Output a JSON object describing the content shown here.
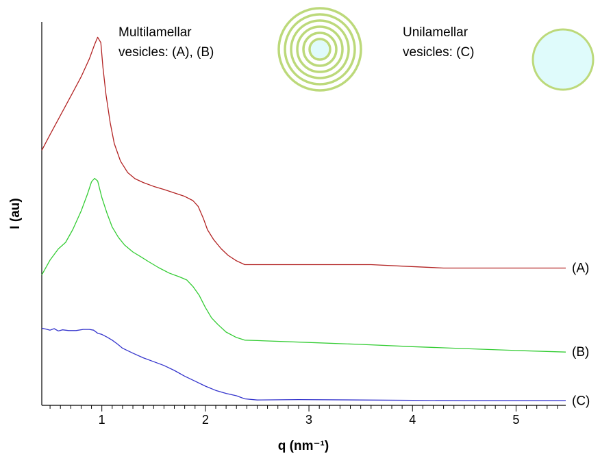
{
  "chart_data": {
    "type": "line",
    "xlabel": "q (nm⁻¹)",
    "ylabel": "I (au)",
    "xlim": [
      0.42,
      5.48
    ],
    "ylim": [
      0,
      1
    ],
    "x_ticks": [
      "1",
      "2",
      "3",
      "4",
      "5"
    ],
    "x_tick_values": [
      1,
      2,
      3,
      4,
      5
    ],
    "grid": false,
    "annotations": {
      "multilamellar": [
        "Multilamellar",
        "vesicles: (A), (B)"
      ],
      "unilamellar": [
        "Unilamellar",
        "vesicles: (C)"
      ]
    },
    "colors": {
      "A": "#b22222",
      "B": "#33cc33",
      "C": "#3333cc",
      "vesicle_ring": "#bcd97a",
      "vesicle_fill": "#dffbfb"
    },
    "series": [
      {
        "name": "(A)",
        "color": "#b22222",
        "points": [
          [
            0.42,
            0.665
          ],
          [
            0.5,
            0.706
          ],
          [
            0.6,
            0.756
          ],
          [
            0.7,
            0.806
          ],
          [
            0.8,
            0.857
          ],
          [
            0.88,
            0.904
          ],
          [
            0.93,
            0.941
          ],
          [
            0.96,
            0.96
          ],
          [
            0.99,
            0.946
          ],
          [
            1.01,
            0.883
          ],
          [
            1.04,
            0.811
          ],
          [
            1.08,
            0.738
          ],
          [
            1.12,
            0.683
          ],
          [
            1.18,
            0.637
          ],
          [
            1.25,
            0.607
          ],
          [
            1.32,
            0.591
          ],
          [
            1.4,
            0.581
          ],
          [
            1.5,
            0.571
          ],
          [
            1.6,
            0.563
          ],
          [
            1.7,
            0.554
          ],
          [
            1.8,
            0.545
          ],
          [
            1.88,
            0.534
          ],
          [
            1.93,
            0.519
          ],
          [
            1.98,
            0.488
          ],
          [
            2.02,
            0.458
          ],
          [
            2.08,
            0.432
          ],
          [
            2.15,
            0.409
          ],
          [
            2.22,
            0.391
          ],
          [
            2.3,
            0.377
          ],
          [
            2.38,
            0.367
          ],
          [
            2.5,
            0.367
          ],
          [
            3.0,
            0.367
          ],
          [
            3.6,
            0.367
          ],
          [
            3.9,
            0.363
          ],
          [
            4.3,
            0.358
          ],
          [
            5.0,
            0.358
          ],
          [
            5.48,
            0.358
          ]
        ]
      },
      {
        "name": "(B)",
        "color": "#33cc33",
        "points": [
          [
            0.42,
            0.34
          ],
          [
            0.5,
            0.379
          ],
          [
            0.58,
            0.408
          ],
          [
            0.65,
            0.425
          ],
          [
            0.72,
            0.459
          ],
          [
            0.8,
            0.507
          ],
          [
            0.86,
            0.55
          ],
          [
            0.9,
            0.583
          ],
          [
            0.93,
            0.592
          ],
          [
            0.96,
            0.585
          ],
          [
            1.0,
            0.542
          ],
          [
            1.05,
            0.501
          ],
          [
            1.1,
            0.465
          ],
          [
            1.16,
            0.438
          ],
          [
            1.22,
            0.418
          ],
          [
            1.3,
            0.4
          ],
          [
            1.38,
            0.387
          ],
          [
            1.45,
            0.375
          ],
          [
            1.55,
            0.359
          ],
          [
            1.65,
            0.345
          ],
          [
            1.75,
            0.335
          ],
          [
            1.82,
            0.327
          ],
          [
            1.88,
            0.31
          ],
          [
            1.94,
            0.287
          ],
          [
            2.0,
            0.255
          ],
          [
            2.06,
            0.228
          ],
          [
            2.12,
            0.211
          ],
          [
            2.2,
            0.191
          ],
          [
            2.3,
            0.177
          ],
          [
            2.38,
            0.17
          ],
          [
            2.5,
            0.169
          ],
          [
            3.0,
            0.164
          ],
          [
            3.5,
            0.159
          ],
          [
            4.0,
            0.153
          ],
          [
            4.5,
            0.148
          ],
          [
            5.0,
            0.143
          ],
          [
            5.48,
            0.139
          ]
        ]
      },
      {
        "name": "(C)",
        "color": "#3333cc",
        "points": [
          [
            0.42,
            0.201
          ],
          [
            0.46,
            0.199
          ],
          [
            0.5,
            0.196
          ],
          [
            0.54,
            0.2
          ],
          [
            0.58,
            0.194
          ],
          [
            0.62,
            0.197
          ],
          [
            0.68,
            0.195
          ],
          [
            0.75,
            0.195
          ],
          [
            0.82,
            0.198
          ],
          [
            0.88,
            0.198
          ],
          [
            0.92,
            0.196
          ],
          [
            0.96,
            0.188
          ],
          [
            1.0,
            0.185
          ],
          [
            1.05,
            0.178
          ],
          [
            1.1,
            0.17
          ],
          [
            1.15,
            0.16
          ],
          [
            1.2,
            0.149
          ],
          [
            1.3,
            0.136
          ],
          [
            1.4,
            0.124
          ],
          [
            1.5,
            0.114
          ],
          [
            1.6,
            0.104
          ],
          [
            1.7,
            0.091
          ],
          [
            1.8,
            0.076
          ],
          [
            1.9,
            0.063
          ],
          [
            2.0,
            0.05
          ],
          [
            2.1,
            0.039
          ],
          [
            2.2,
            0.031
          ],
          [
            2.3,
            0.025
          ],
          [
            2.38,
            0.017
          ],
          [
            2.5,
            0.014
          ],
          [
            2.9,
            0.015
          ],
          [
            3.5,
            0.014
          ],
          [
            4.0,
            0.013
          ],
          [
            4.5,
            0.012
          ],
          [
            5.0,
            0.012
          ],
          [
            5.48,
            0.012
          ]
        ]
      }
    ]
  }
}
